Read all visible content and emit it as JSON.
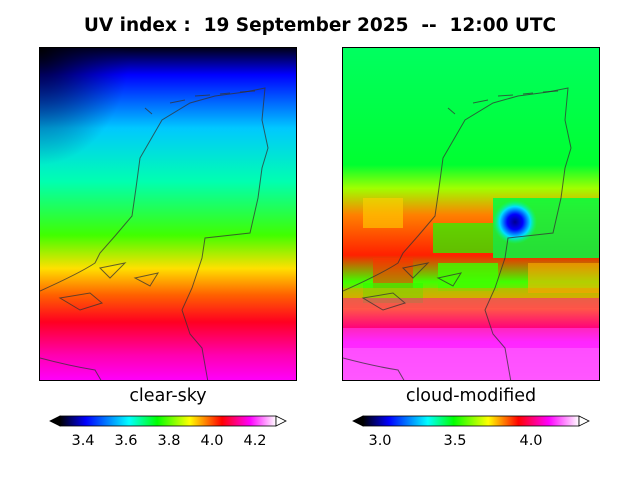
{
  "title": "UV index :  19 September 2025  --  12:00 UTC",
  "panels": [
    {
      "label": "clear-sky"
    },
    {
      "label": "cloud-modified"
    }
  ],
  "colorbars": [
    {
      "ticks": [
        "3.4",
        "3.6",
        "3.8",
        "4.0",
        "4.2"
      ],
      "tick_values": [
        3.4,
        3.6,
        3.8,
        4.0,
        4.2
      ],
      "vmin": 3.3,
      "vmax": 4.3
    },
    {
      "ticks": [
        "3.0",
        "3.5",
        "4.0"
      ],
      "tick_values": [
        3.0,
        3.5,
        4.0
      ],
      "vmin": 2.9,
      "vmax": 4.35
    }
  ],
  "colormap": [
    "#000000",
    "#0000ff",
    "#00ffff",
    "#00ff00",
    "#ffff00",
    "#ff0000",
    "#ff00ff",
    "#ffffff"
  ]
}
